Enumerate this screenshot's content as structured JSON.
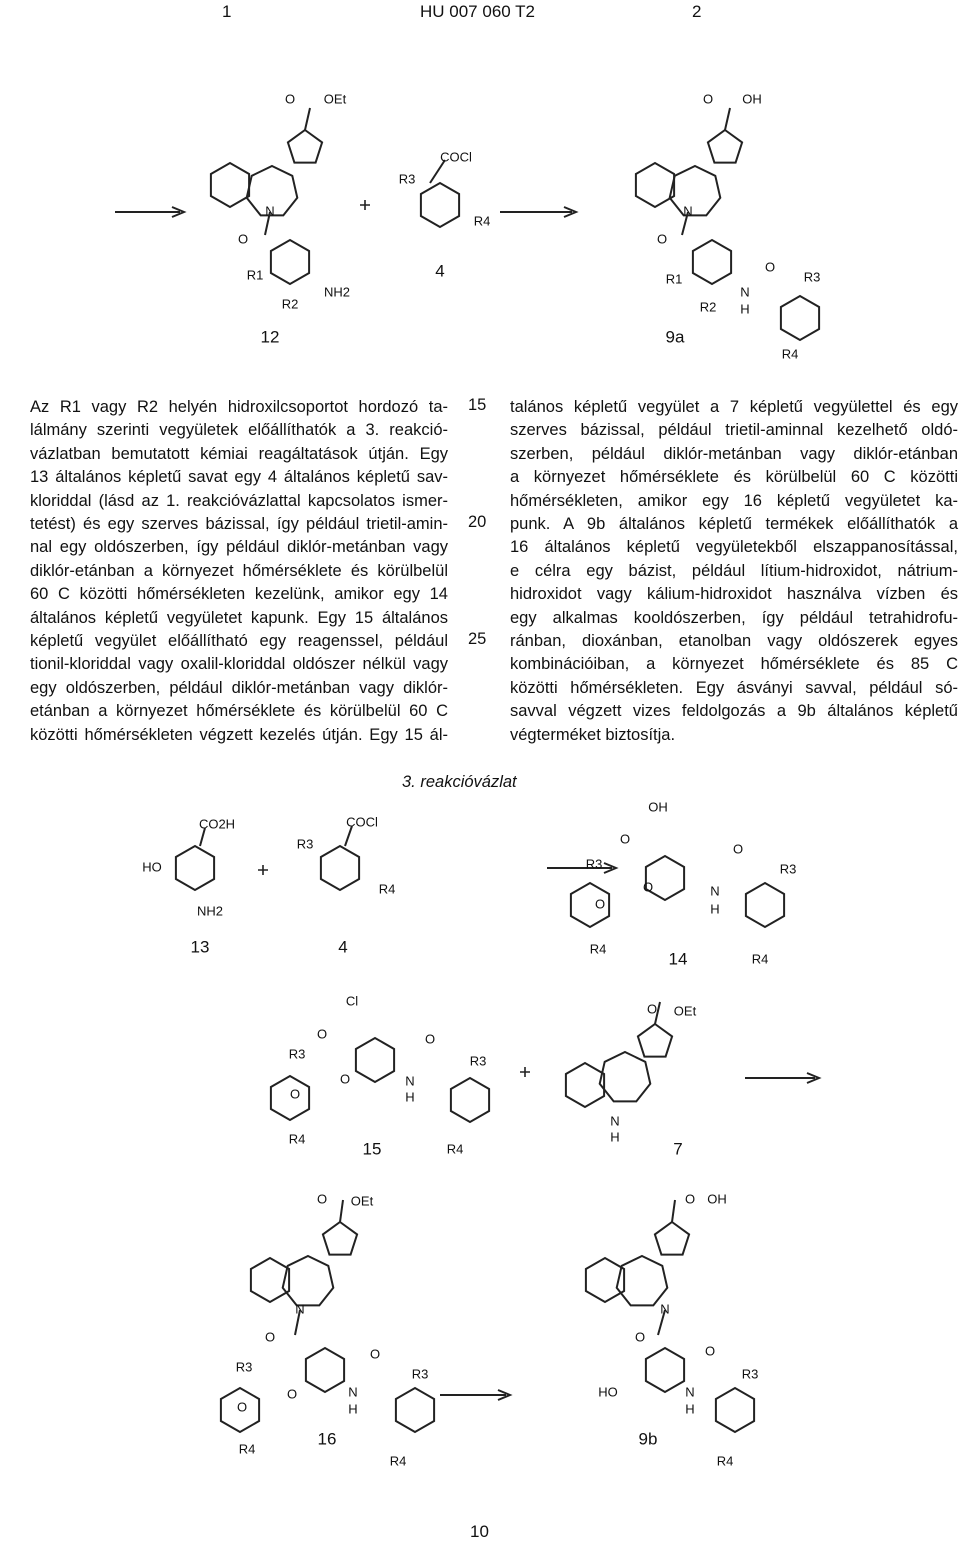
{
  "header": {
    "left": "1",
    "center": "HU 007 060 T2",
    "right": "2"
  },
  "scheme1": {
    "structures": [
      {
        "number": "12",
        "labels": [
          "O",
          "OEt",
          "N",
          "O",
          "R1",
          "R2",
          "NH2"
        ]
      },
      {
        "number": "4",
        "labels": [
          "COCl",
          "R3",
          "R4"
        ]
      },
      {
        "number": "9a",
        "labels": [
          "O",
          "OH",
          "N",
          "O",
          "R1",
          "R2",
          "N",
          "H",
          "O",
          "R3",
          "R4"
        ]
      }
    ]
  },
  "line_numbers": [
    "15",
    "20",
    "25"
  ],
  "left_column": [
    "Az R1 vagy R2 helyén hidroxilcsoportot hordozó ta-",
    "lálmány szerinti vegyületek előállíthatók a 3. reakció-",
    "vázlatban bemutatott kémiai reagáltatások útján. Egy",
    "13 általános képletű savat egy 4 általános képletű sav-",
    "kloriddal (lásd az 1. reakcióvázlattal kapcsolatos ismer-",
    "tetést) és egy szerves bázissal, így például trietil-amin-",
    "nal egy oldószerben, így például diklór-metánban vagy",
    "diklór-etánban a környezet hőmérséklete és körülbelül",
    "60 C közötti hőmérsékleten kezelünk, amikor egy 14",
    "általános képletű vegyületet kapunk. Egy 15 általános",
    "képletű vegyület előállítható egy reagenssel, például",
    "tionil-kloriddal vagy oxalil-kloriddal oldószer nélkül vagy",
    "egy oldószerben, például diklór-metánban vagy diklór-",
    "etánban a környezet hőmérséklete és körülbelül 60 C",
    "közötti hőmérsékleten végzett kezelés útján. Egy 15 ál-"
  ],
  "right_column": [
    "talános képletű vegyület a 7 képletű vegyülettel és egy",
    "szerves bázissal, például trietil-aminnal kezelhető oldó-",
    "szerben, például diklór-metánban vagy diklór-etánban",
    "a környezet hőmérséklete és körülbelül 60 C közötti",
    "hőmérsékleten, amikor egy 16 képletű vegyületet ka-",
    "punk. A 9b általános képletű termékek előállíthatók a",
    "16 általános képletű vegyületekből elszappanosítással,",
    "e célra egy bázist, például lítium-hidroxidot, nátrium-",
    "hidroxidot vagy kálium-hidroxidot használva vízben és",
    "egy alkalmas kooldószerben, így például tetrahidrofu-",
    "ránban, dioxánban, etanolban vagy oldószerek egyes",
    "kombinációiban, a környezet hőmérséklete és 85 C",
    "közötti hőmérsékleten. Egy ásványi savval, például só-",
    "savval végzett vizes feldolgozás a 9b általános képletű",
    "végterméket biztosítja."
  ],
  "scheme3": {
    "title": "3. reakcióvázlat",
    "structures": [
      {
        "number": "13",
        "labels": [
          "CO2H",
          "HO",
          "NH2"
        ]
      },
      {
        "number": "4",
        "labels": [
          "COCl",
          "R3",
          "R4"
        ]
      },
      {
        "number": "14",
        "labels": [
          "OH",
          "O",
          "R3",
          "O",
          "O",
          "N",
          "H",
          "O",
          "R3",
          "R4",
          "R4"
        ]
      },
      {
        "number": "15",
        "labels": [
          "Cl",
          "O",
          "R3",
          "O",
          "O",
          "N",
          "H",
          "O",
          "R3",
          "R4",
          "R4"
        ]
      },
      {
        "number": "7",
        "labels": [
          "O",
          "OEt",
          "N",
          "H"
        ]
      },
      {
        "number": "16",
        "labels": [
          "O",
          "OEt",
          "N",
          "O",
          "R3",
          "O",
          "O",
          "N",
          "H",
          "O",
          "R3",
          "R4",
          "R4"
        ]
      },
      {
        "number": "9b",
        "labels": [
          "O",
          "OH",
          "N",
          "O",
          "HO",
          "N",
          "H",
          "O",
          "R3",
          "R4"
        ]
      }
    ]
  },
  "footer": {
    "page_number": "10"
  }
}
